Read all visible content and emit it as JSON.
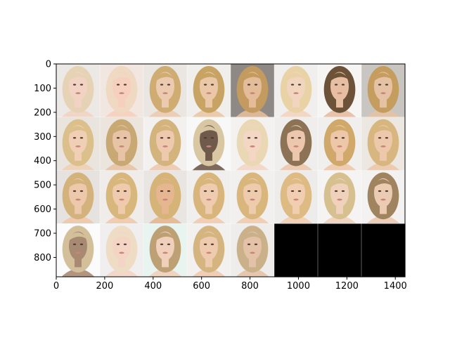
{
  "chart_data": {
    "type": "image-grid",
    "title": "",
    "xlabel": "",
    "ylabel": "",
    "xlim": [
      0,
      1440
    ],
    "ylim": [
      880,
      0
    ],
    "xticks": [
      0,
      200,
      400,
      600,
      800,
      1000,
      1200,
      1400
    ],
    "yticks": [
      0,
      100,
      200,
      300,
      400,
      500,
      600,
      700,
      800
    ],
    "grid": false,
    "image_width": 1440,
    "image_height": 880,
    "tile_width": 180,
    "tile_height": 220,
    "columns": 8,
    "rows": 4,
    "tiles": [
      {
        "row": 0,
        "col": 0,
        "bg": "#ece8e6",
        "hair": "#e6d3b6",
        "skin": "#f2d3c3"
      },
      {
        "row": 0,
        "col": 1,
        "bg": "#f2e6e0",
        "hair": "#f0d9c2",
        "skin": "#f6cfbe"
      },
      {
        "row": 0,
        "col": 2,
        "bg": "#eae6e2",
        "hair": "#cfac72",
        "skin": "#eccab0"
      },
      {
        "row": 0,
        "col": 3,
        "bg": "#f1efec",
        "hair": "#c7a463",
        "skin": "#eac7a6"
      },
      {
        "row": 0,
        "col": 4,
        "bg": "#8f8985",
        "hair": "#c49b5e",
        "skin": "#e4bc9a"
      },
      {
        "row": 0,
        "col": 5,
        "bg": "#f1efee",
        "hair": "#e8d2a6",
        "skin": "#f2d5bf"
      },
      {
        "row": 0,
        "col": 6,
        "bg": "#f6f5f4",
        "hair": "#6b5238",
        "skin": "#e7bea2"
      },
      {
        "row": 0,
        "col": 7,
        "bg": "#c9c6c2",
        "hair": "#c59e5f",
        "skin": "#e6c2a4"
      },
      {
        "row": 1,
        "col": 0,
        "bg": "#e9e4dd",
        "hair": "#dcc08b",
        "skin": "#f0cfb4"
      },
      {
        "row": 1,
        "col": 1,
        "bg": "#ebe5de",
        "hair": "#c8a873",
        "skin": "#e9c3a5"
      },
      {
        "row": 1,
        "col": 2,
        "bg": "#f3f1ef",
        "hair": "#d3b47c",
        "skin": "#eec9ad"
      },
      {
        "row": 1,
        "col": 3,
        "bg": "#f8f8f8",
        "hair": "#d9c7a3",
        "skin": "#6f5a4b"
      },
      {
        "row": 1,
        "col": 4,
        "bg": "#f3f2f1",
        "hair": "#ead7b3",
        "skin": "#f3d6c4"
      },
      {
        "row": 1,
        "col": 5,
        "bg": "#f0eeec",
        "hair": "#8c7355",
        "skin": "#ecc7ad"
      },
      {
        "row": 1,
        "col": 6,
        "bg": "#f1efed",
        "hair": "#cfa86a",
        "skin": "#eec6a8"
      },
      {
        "row": 1,
        "col": 7,
        "bg": "#ece7e1",
        "hair": "#d7b77f",
        "skin": "#eec8ab"
      },
      {
        "row": 2,
        "col": 0,
        "bg": "#e6e2df",
        "hair": "#d4b27b",
        "skin": "#eec8aa"
      },
      {
        "row": 2,
        "col": 1,
        "bg": "#efece9",
        "hair": "#d8b77c",
        "skin": "#efcaac"
      },
      {
        "row": 2,
        "col": 2,
        "bg": "#e8e5e2",
        "hair": "#d6b478",
        "skin": "#e5b690"
      },
      {
        "row": 2,
        "col": 3,
        "bg": "#f1efed",
        "hair": "#d7b57b",
        "skin": "#efcbaf"
      },
      {
        "row": 2,
        "col": 4,
        "bg": "#f2f0ee",
        "hair": "#d8b67c",
        "skin": "#efcbae"
      },
      {
        "row": 2,
        "col": 5,
        "bg": "#eeeceb",
        "hair": "#ddbb82",
        "skin": "#f1ceb2"
      },
      {
        "row": 2,
        "col": 6,
        "bg": "#f5f4f3",
        "hair": "#d6c08f",
        "skin": "#f0d1bb"
      },
      {
        "row": 2,
        "col": 7,
        "bg": "#f3f2f1",
        "hair": "#a08460",
        "skin": "#eccbb3"
      },
      {
        "row": 3,
        "col": 0,
        "bg": "#fbfbfb",
        "hair": "#d3c09a",
        "skin": "#a88a72"
      },
      {
        "row": 3,
        "col": 1,
        "bg": "#f0eeee",
        "hair": "#efdcc4",
        "skin": "#f3d4c5"
      },
      {
        "row": 3,
        "col": 2,
        "bg": "#e8f4ef",
        "hair": "#bda074",
        "skin": "#f0d0ba"
      },
      {
        "row": 3,
        "col": 3,
        "bg": "#f3f1ef",
        "hair": "#d5b57f",
        "skin": "#eecaae"
      },
      {
        "row": 3,
        "col": 4,
        "bg": "#efedeb",
        "hair": "#cbb18a",
        "skin": "#e3c2a8"
      }
    ],
    "empty_fill": "#000000",
    "axes_color": "#000000",
    "tick_color": "#000000"
  }
}
